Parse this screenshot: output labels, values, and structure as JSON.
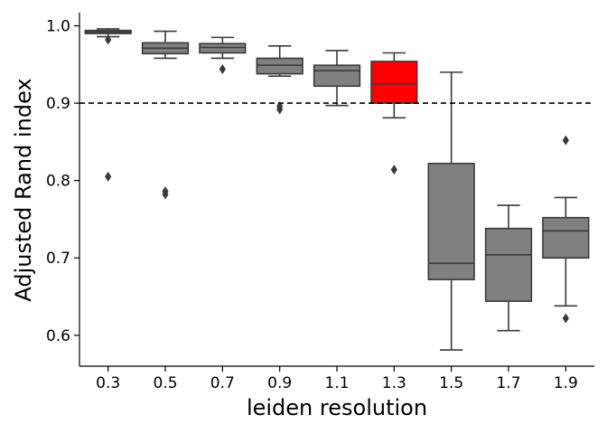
{
  "chart_data": {
    "type": "box",
    "xlabel": "leiden resolution",
    "ylabel": "Adjusted Rand index",
    "categories": [
      "0.3",
      "0.5",
      "0.7",
      "0.9",
      "1.1",
      "1.3",
      "1.5",
      "1.7",
      "1.9"
    ],
    "ylim": [
      0.56,
      1.017
    ],
    "yticks": [
      "0.6",
      "0.7",
      "0.8",
      "0.9",
      "1.0"
    ],
    "reference_line": {
      "y": 0.9,
      "style": "dashed",
      "color": "#000000"
    },
    "grid": false,
    "legend": "none",
    "default_box_color": "#808080",
    "highlight_box_color": "#ff0000",
    "boxes": [
      {
        "category": "0.3",
        "whislo": 0.986,
        "q1": 0.99,
        "median": 0.992,
        "q3": 0.994,
        "whishi": 0.996,
        "fliers": [
          0.982,
          0.805
        ],
        "highlight": false
      },
      {
        "category": "0.5",
        "whislo": 0.958,
        "q1": 0.964,
        "median": 0.971,
        "q3": 0.978,
        "whishi": 0.993,
        "fliers": [
          0.786,
          0.782
        ],
        "highlight": false
      },
      {
        "category": "0.7",
        "whislo": 0.958,
        "q1": 0.965,
        "median": 0.972,
        "q3": 0.977,
        "whishi": 0.985,
        "fliers": [
          0.944
        ],
        "highlight": false
      },
      {
        "category": "0.9",
        "whislo": 0.935,
        "q1": 0.938,
        "median": 0.949,
        "q3": 0.958,
        "whishi": 0.974,
        "fliers": [
          0.896,
          0.892
        ],
        "highlight": false
      },
      {
        "category": "1.1",
        "whislo": 0.897,
        "q1": 0.922,
        "median": 0.942,
        "q3": 0.949,
        "whishi": 0.968,
        "fliers": [],
        "highlight": false
      },
      {
        "category": "1.3",
        "whislo": 0.881,
        "q1": 0.9,
        "median": 0.925,
        "q3": 0.954,
        "whishi": 0.965,
        "fliers": [
          0.814
        ],
        "highlight": true
      },
      {
        "category": "1.5",
        "whislo": 0.581,
        "q1": 0.672,
        "median": 0.693,
        "q3": 0.822,
        "whishi": 0.94,
        "fliers": [],
        "highlight": false
      },
      {
        "category": "1.7",
        "whislo": 0.606,
        "q1": 0.644,
        "median": 0.704,
        "q3": 0.738,
        "whishi": 0.768,
        "fliers": [],
        "highlight": false
      },
      {
        "category": "1.9",
        "whislo": 0.638,
        "q1": 0.7,
        "median": 0.735,
        "q3": 0.752,
        "whishi": 0.778,
        "fliers": [
          0.852,
          0.622
        ],
        "highlight": false
      }
    ]
  }
}
